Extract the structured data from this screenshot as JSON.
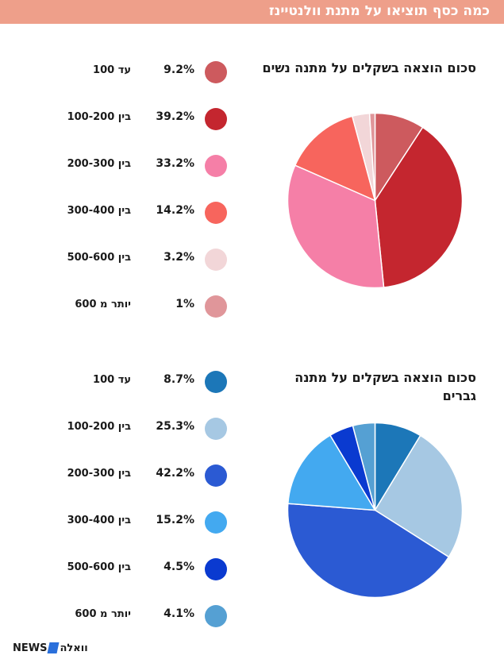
{
  "header": {
    "title": "כמה כסף תוציאו על מתנת וולנטיינז"
  },
  "footer": {
    "logo_news": "NEWS",
    "logo_walla": "וואלה"
  },
  "chart_data": [
    {
      "type": "pie",
      "title": "סכום הוצאה בשקלים על מתנה נשים",
      "categories": [
        "עד 100",
        "בין 100-200",
        "בין 200-300",
        "בין 300-400",
        "בין 500-600",
        "יותר מ 600"
      ],
      "values": [
        9.2,
        39.2,
        33.2,
        14.2,
        3.2,
        1
      ],
      "value_labels": [
        "9.2%",
        "39.2%",
        "33.2%",
        "14.2%",
        "3.2%",
        "1%"
      ],
      "colors": [
        "#cd5a5e",
        "#c4262f",
        "#f57fa7",
        "#f7655d",
        "#f2d6d8",
        "#e0969a"
      ]
    },
    {
      "type": "pie",
      "title": "סכום הוצאה בשקלים על מתנה גברים",
      "categories": [
        "עד 100",
        "בין 100-200",
        "בין 200-300",
        "בין 300-400",
        "בין 500-600",
        "יותר מ 600"
      ],
      "values": [
        8.7,
        25.3,
        42.2,
        15.2,
        4.5,
        4.1
      ],
      "value_labels": [
        "8.7%",
        "25.3%",
        "42.2%",
        "15.2%",
        "4.5%",
        "4.1%"
      ],
      "colors": [
        "#1c77b8",
        "#a6c8e3",
        "#2b5ad3",
        "#43a9f0",
        "#0a3ad0",
        "#55a0d3"
      ]
    }
  ]
}
